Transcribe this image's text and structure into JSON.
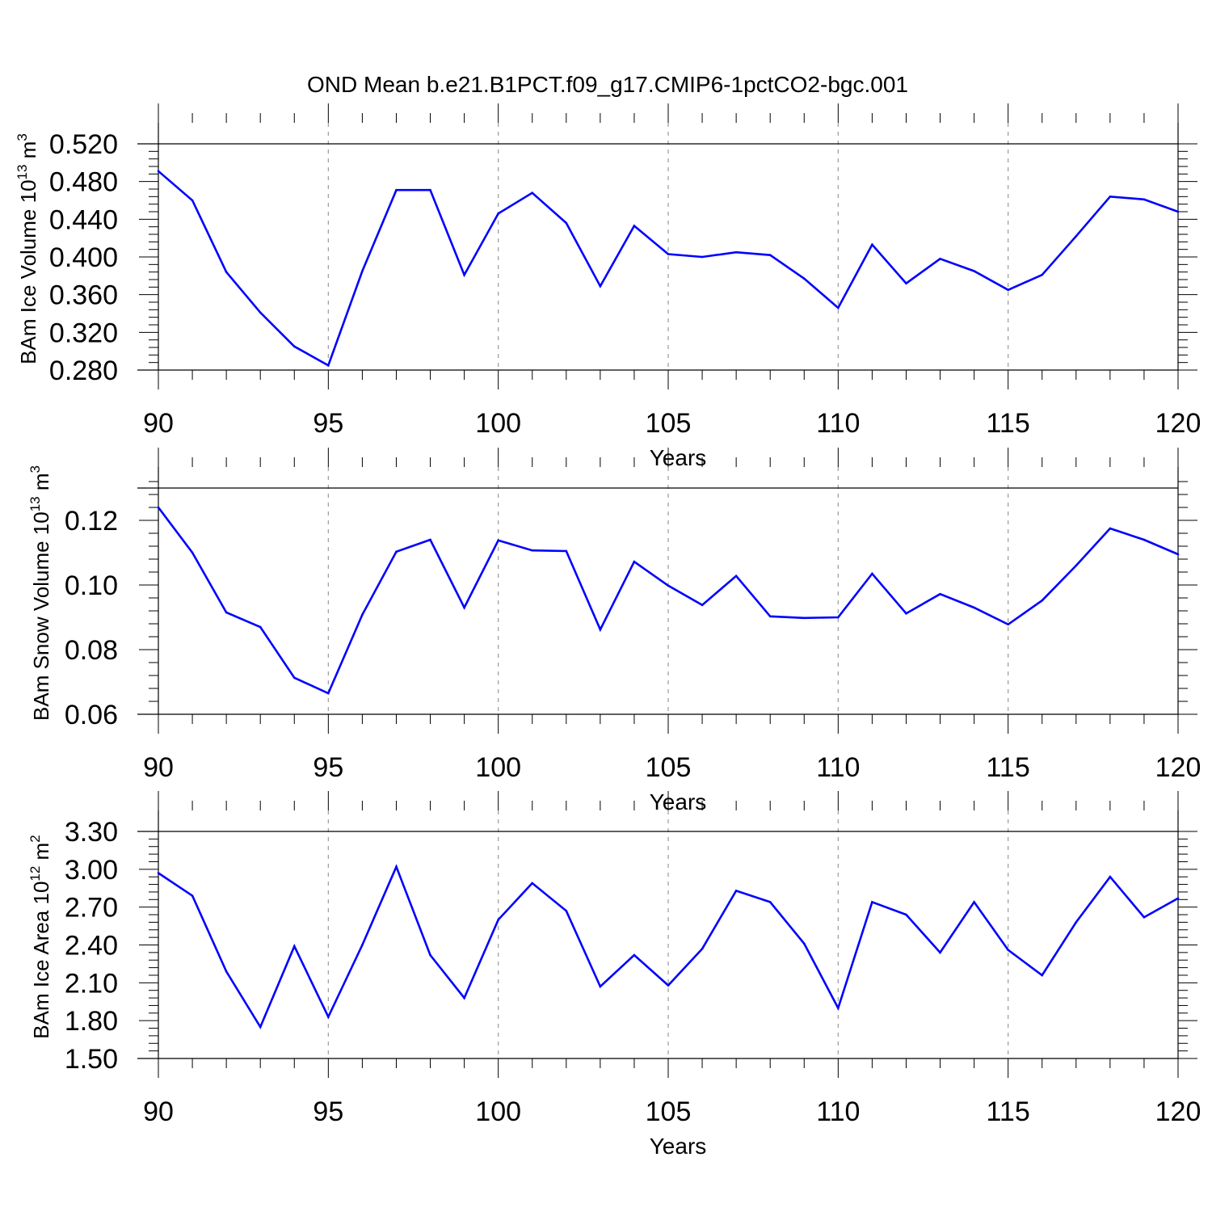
{
  "figure": {
    "title": "OND Mean b.e21.B1PCT.f09_g17.CMIP6-1pctCO2-bgc.001"
  },
  "chart_data": [
    {
      "type": "line",
      "title": "OND Mean b.e21.B1PCT.f09_g17.CMIP6-1pctCO2-bgc.001",
      "xlabel": "Years",
      "ylabel": "BAm Ice Volume 10",
      "ylabel_exp": "13",
      "ylabel_unit": " m",
      "ylabel_unit_exp": "3",
      "xlim": [
        90,
        120
      ],
      "ylim": [
        0.28,
        0.52
      ],
      "xticks": [
        "90",
        "95",
        "100",
        "105",
        "110",
        "115",
        "120"
      ],
      "yticks": [
        "0.280",
        "0.320",
        "0.360",
        "0.400",
        "0.440",
        "0.480",
        "0.520"
      ],
      "ytick_values": [
        0.28,
        0.32,
        0.36,
        0.4,
        0.44,
        0.48,
        0.52
      ],
      "y_minor_step": 0.008,
      "grid": "vertical dashed at major x ticks",
      "color": "#0000ff",
      "x": [
        90,
        91,
        92,
        93,
        94,
        95,
        96,
        97,
        98,
        99,
        100,
        101,
        102,
        103,
        104,
        105,
        106,
        107,
        108,
        109,
        110,
        111,
        112,
        113,
        114,
        115,
        116,
        117,
        118,
        119,
        120
      ],
      "values": [
        0.491,
        0.46,
        0.384,
        0.341,
        0.305,
        0.285,
        0.385,
        0.471,
        0.471,
        0.381,
        0.446,
        0.468,
        0.436,
        0.369,
        0.433,
        0.403,
        0.4,
        0.405,
        0.402,
        0.377,
        0.346,
        0.413,
        0.372,
        0.398,
        0.385,
        0.365,
        0.381,
        0.422,
        0.464,
        0.461,
        0.448
      ]
    },
    {
      "type": "line",
      "title": "",
      "xlabel": "Years",
      "ylabel": "BAm Snow Volume 10",
      "ylabel_exp": "13",
      "ylabel_unit": " m",
      "ylabel_unit_exp": "3",
      "xlim": [
        90,
        120
      ],
      "ylim": [
        0.06,
        0.13
      ],
      "xticks": [
        "90",
        "95",
        "100",
        "105",
        "110",
        "115",
        "120"
      ],
      "yticks": [
        "0.06",
        "0.08",
        "0.10",
        "0.12"
      ],
      "ytick_values": [
        0.06,
        0.08,
        0.1,
        0.12
      ],
      "y_minor_step": 0.004,
      "grid": "vertical dashed at major x ticks",
      "color": "#0000ff",
      "x": [
        90,
        91,
        92,
        93,
        94,
        95,
        96,
        97,
        98,
        99,
        100,
        101,
        102,
        103,
        104,
        105,
        106,
        107,
        108,
        109,
        110,
        111,
        112,
        113,
        114,
        115,
        116,
        117,
        118,
        119,
        120
      ],
      "values": [
        0.124,
        0.11,
        0.0915,
        0.087,
        0.0713,
        0.0665,
        0.0908,
        0.1103,
        0.114,
        0.093,
        0.1138,
        0.1107,
        0.1105,
        0.0862,
        0.1072,
        0.0998,
        0.0938,
        0.1028,
        0.0903,
        0.0898,
        0.09,
        0.1035,
        0.0912,
        0.0972,
        0.093,
        0.0878,
        0.0952,
        0.106,
        0.1175,
        0.114,
        0.1095
      ]
    },
    {
      "type": "line",
      "title": "",
      "xlabel": "Years",
      "ylabel": "BAm Ice Area 10",
      "ylabel_exp": "12",
      "ylabel_unit": " m",
      "ylabel_unit_exp": "2",
      "xlim": [
        90,
        120
      ],
      "ylim": [
        1.5,
        3.3
      ],
      "xticks": [
        "90",
        "95",
        "100",
        "105",
        "110",
        "115",
        "120"
      ],
      "yticks": [
        "1.50",
        "1.80",
        "2.10",
        "2.40",
        "2.70",
        "3.00",
        "3.30"
      ],
      "ytick_values": [
        1.5,
        1.8,
        2.1,
        2.4,
        2.7,
        3.0,
        3.3
      ],
      "y_minor_step": 0.06,
      "grid": "vertical dashed at major x ticks",
      "color": "#0000ff",
      "x": [
        90,
        91,
        92,
        93,
        94,
        95,
        96,
        97,
        98,
        99,
        100,
        101,
        102,
        103,
        104,
        105,
        106,
        107,
        108,
        109,
        110,
        111,
        112,
        113,
        114,
        115,
        116,
        117,
        118,
        119,
        120
      ],
      "values": [
        2.97,
        2.79,
        2.19,
        1.75,
        2.39,
        1.83,
        2.4,
        3.02,
        2.32,
        1.98,
        2.6,
        2.89,
        2.67,
        2.07,
        2.32,
        2.08,
        2.37,
        2.83,
        2.74,
        2.41,
        1.9,
        2.74,
        2.64,
        2.34,
        2.74,
        2.36,
        2.16,
        2.58,
        2.94,
        2.62,
        2.77
      ]
    }
  ]
}
